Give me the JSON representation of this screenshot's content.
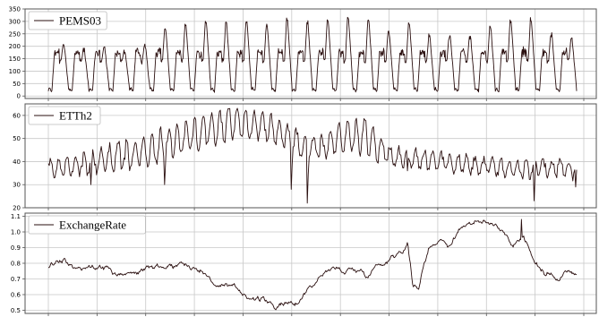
{
  "colors": {
    "line": "#2a0f0f",
    "grid": "#c8c8c8",
    "axis": "#555555",
    "legend_border": "#bbbbbb"
  },
  "chart_data": [
    {
      "type": "line",
      "title": "",
      "xlabel": "",
      "ylabel": "",
      "grid": true,
      "legend": "top-left",
      "series": [
        {
          "name": "PEMS03",
          "values": []
        }
      ],
      "ylim": [
        -10,
        350
      ],
      "yticks": [
        0,
        50,
        100,
        150,
        200,
        250,
        300,
        350
      ],
      "ytick_labels": [
        "0",
        "50",
        "100",
        "150",
        "200",
        "250",
        "300",
        "350"
      ],
      "x_vertical_grid_count": 12,
      "generator": {
        "kind": "daily-cycle",
        "cycles": 26,
        "points_per_cycle": 40,
        "trough": 25,
        "plateau": 175,
        "peak_values": [
          205,
          185,
          195,
          180,
          205,
          275,
          285,
          300,
          290,
          300,
          285,
          300,
          290,
          300,
          310,
          305,
          260,
          290,
          240,
          245,
          240,
          280,
          305,
          300,
          250,
          230
        ],
        "noise": 14,
        "end_value": 20
      }
    },
    {
      "type": "line",
      "title": "",
      "xlabel": "",
      "ylabel": "",
      "grid": true,
      "legend": "top-left",
      "series": [
        {
          "name": "ETTh2",
          "values": []
        }
      ],
      "ylim": [
        20,
        65
      ],
      "yticks": [
        20,
        30,
        40,
        50,
        60
      ],
      "ytick_labels": [
        "20",
        "30",
        "40",
        "50",
        "60"
      ],
      "x_vertical_grid_count": 12,
      "generator": {
        "kind": "noisy-oscillation",
        "points": 560,
        "trend": [
          [
            0,
            36
          ],
          [
            0.08,
            40
          ],
          [
            0.18,
            44
          ],
          [
            0.25,
            50
          ],
          [
            0.35,
            57
          ],
          [
            0.42,
            55
          ],
          [
            0.48,
            47
          ],
          [
            0.52,
            46
          ],
          [
            0.57,
            52
          ],
          [
            0.61,
            50
          ],
          [
            0.65,
            42
          ],
          [
            0.72,
            41
          ],
          [
            0.82,
            38
          ],
          [
            0.9,
            37
          ],
          [
            1.0,
            37
          ]
        ],
        "amplitude": [
          [
            0,
            4
          ],
          [
            0.2,
            7
          ],
          [
            0.35,
            7
          ],
          [
            0.5,
            5
          ],
          [
            0.6,
            8
          ],
          [
            0.65,
            4
          ],
          [
            1.0,
            3.5
          ]
        ],
        "period": 9,
        "noise": 1.4,
        "dips": [
          [
            0.08,
            30
          ],
          [
            0.22,
            30
          ],
          [
            0.46,
            28
          ],
          [
            0.49,
            22
          ],
          [
            0.68,
            36
          ],
          [
            0.92,
            23
          ],
          [
            0.998,
            29
          ]
        ]
      }
    },
    {
      "type": "line",
      "title": "",
      "xlabel": "",
      "ylabel": "",
      "grid": true,
      "legend": "top-left",
      "series": [
        {
          "name": "ExchangeRate",
          "values": []
        }
      ],
      "ylim": [
        0.48,
        1.12
      ],
      "yticks": [
        0.5,
        0.6,
        0.7,
        0.8,
        0.9,
        1.0,
        1.1
      ],
      "ytick_labels": [
        "0.5",
        "0.6",
        "0.7",
        "0.8",
        "0.9",
        "1.0",
        "1.1"
      ],
      "x_vertical_grid_count": 12,
      "generator": {
        "kind": "random-walk-anchored",
        "points": 700,
        "anchors": [
          [
            0,
            0.78
          ],
          [
            0.03,
            0.83
          ],
          [
            0.05,
            0.77
          ],
          [
            0.1,
            0.78
          ],
          [
            0.15,
            0.72
          ],
          [
            0.2,
            0.77
          ],
          [
            0.25,
            0.8
          ],
          [
            0.28,
            0.78
          ],
          [
            0.32,
            0.66
          ],
          [
            0.36,
            0.62
          ],
          [
            0.4,
            0.57
          ],
          [
            0.44,
            0.52
          ],
          [
            0.47,
            0.55
          ],
          [
            0.5,
            0.67
          ],
          [
            0.53,
            0.76
          ],
          [
            0.58,
            0.76
          ],
          [
            0.6,
            0.74
          ],
          [
            0.64,
            0.82
          ],
          [
            0.66,
            0.87
          ],
          [
            0.68,
            0.93
          ],
          [
            0.69,
            0.67
          ],
          [
            0.7,
            0.63
          ],
          [
            0.72,
            0.9
          ],
          [
            0.74,
            0.96
          ],
          [
            0.76,
            0.92
          ],
          [
            0.78,
            1.03
          ],
          [
            0.8,
            1.07
          ],
          [
            0.82,
            1.05
          ],
          [
            0.84,
            1.05
          ],
          [
            0.86,
            1.02
          ],
          [
            0.88,
            0.92
          ],
          [
            0.9,
            0.98
          ],
          [
            0.92,
            0.81
          ],
          [
            0.94,
            0.73
          ],
          [
            0.96,
            0.71
          ],
          [
            0.98,
            0.76
          ],
          [
            1.0,
            0.72
          ]
        ],
        "noise": 0.012,
        "spikes": [
          [
            0.895,
            1.08
          ]
        ]
      }
    }
  ]
}
